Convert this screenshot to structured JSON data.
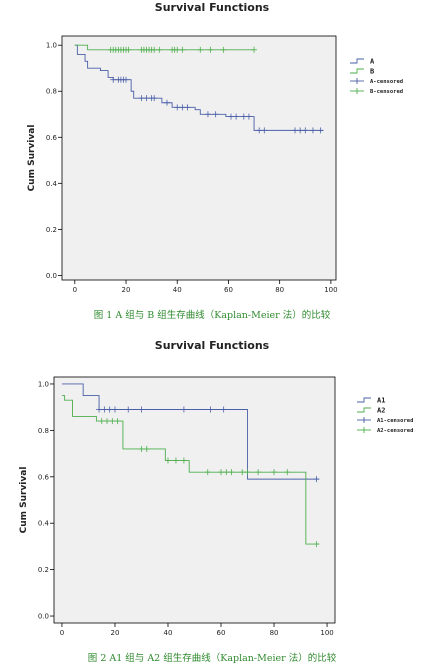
{
  "chart_data": [
    {
      "type": "line",
      "title": "Survival Functions",
      "caption": "图 1 A 组与 B 组生存曲线（Kaplan-Meier 法）的比较",
      "xlabel": "",
      "ylabel": "Cum Survival",
      "xlim": [
        -5,
        102
      ],
      "ylim": [
        -0.02,
        1.04
      ],
      "xticks": [
        "0",
        "20",
        "40",
        "60",
        "80",
        "100"
      ],
      "yticks": [
        "0.0",
        "0.2",
        "0.4",
        "0.6",
        "0.8",
        "1.0"
      ],
      "grid": false,
      "legend": [
        "A",
        "B",
        "A-censored",
        "B-censored"
      ],
      "legend_position": "right",
      "series": [
        {
          "name": "A",
          "color": "#4a5fa8",
          "steps": [
            [
              0,
              1.0
            ],
            [
              1,
              0.96
            ],
            [
              4,
              0.93
            ],
            [
              5,
              0.9
            ],
            [
              10,
              0.89
            ],
            [
              13,
              0.86
            ],
            [
              15,
              0.85
            ],
            [
              22,
              0.8
            ],
            [
              23,
              0.77
            ],
            [
              34,
              0.75
            ],
            [
              38,
              0.73
            ],
            [
              47,
              0.72
            ],
            [
              49,
              0.7
            ],
            [
              59,
              0.69
            ],
            [
              70,
              0.63
            ],
            [
              97,
              0.63
            ]
          ],
          "censored": [
            [
              15,
              0.85
            ],
            [
              17,
              0.85
            ],
            [
              18,
              0.85
            ],
            [
              19,
              0.85
            ],
            [
              20,
              0.85
            ],
            [
              26,
              0.77
            ],
            [
              28,
              0.77
            ],
            [
              30,
              0.77
            ],
            [
              31,
              0.77
            ],
            [
              36,
              0.75
            ],
            [
              40,
              0.73
            ],
            [
              42,
              0.73
            ],
            [
              44,
              0.73
            ],
            [
              52,
              0.7
            ],
            [
              55,
              0.7
            ],
            [
              61,
              0.69
            ],
            [
              63,
              0.69
            ],
            [
              66,
              0.69
            ],
            [
              68,
              0.69
            ],
            [
              72,
              0.63
            ],
            [
              74,
              0.63
            ],
            [
              86,
              0.63
            ],
            [
              88,
              0.63
            ],
            [
              90,
              0.63
            ],
            [
              93,
              0.63
            ],
            [
              96,
              0.63
            ]
          ]
        },
        {
          "name": "B",
          "color": "#4cae4c",
          "steps": [
            [
              0,
              1.0
            ],
            [
              5,
              0.98
            ],
            [
              70,
              0.98
            ]
          ],
          "censored": [
            [
              14,
              0.98
            ],
            [
              15,
              0.98
            ],
            [
              16,
              0.98
            ],
            [
              17,
              0.98
            ],
            [
              18,
              0.98
            ],
            [
              19,
              0.98
            ],
            [
              20,
              0.98
            ],
            [
              21,
              0.98
            ],
            [
              26,
              0.98
            ],
            [
              27,
              0.98
            ],
            [
              28,
              0.98
            ],
            [
              29,
              0.98
            ],
            [
              30,
              0.98
            ],
            [
              31,
              0.98
            ],
            [
              33,
              0.98
            ],
            [
              38,
              0.98
            ],
            [
              39,
              0.98
            ],
            [
              40,
              0.98
            ],
            [
              42,
              0.98
            ],
            [
              49,
              0.98
            ],
            [
              53,
              0.98
            ],
            [
              58,
              0.98
            ],
            [
              70,
              0.98
            ]
          ]
        }
      ]
    },
    {
      "type": "line",
      "title": "Survival Functions",
      "caption": "图 2 A1 组与 A2 组生存曲线（Kaplan-Meier 法）的比较",
      "xlabel": "",
      "ylabel": "Cum Survival",
      "xlim": [
        -3,
        103
      ],
      "ylim": [
        -0.03,
        1.03
      ],
      "xticks": [
        "0",
        "20",
        "40",
        "60",
        "80",
        "100"
      ],
      "yticks": [
        "0.0",
        "0.2",
        "0.4",
        "0.6",
        "0.8",
        "1.0"
      ],
      "grid": false,
      "legend": [
        "A1",
        "A2",
        "A1-censored",
        "A2-censored"
      ],
      "legend_position": "right",
      "series": [
        {
          "name": "A1",
          "color": "#4a5fa8",
          "steps": [
            [
              0,
              1.0
            ],
            [
              8,
              0.95
            ],
            [
              14,
              0.89
            ],
            [
              70,
              0.59
            ],
            [
              97,
              0.59
            ]
          ],
          "censored": [
            [
              14,
              0.89
            ],
            [
              16,
              0.89
            ],
            [
              18,
              0.89
            ],
            [
              20,
              0.89
            ],
            [
              25,
              0.89
            ],
            [
              30,
              0.89
            ],
            [
              46,
              0.89
            ],
            [
              56,
              0.89
            ],
            [
              61,
              0.89
            ],
            [
              96,
              0.59
            ]
          ]
        },
        {
          "name": "A2",
          "color": "#4cae4c",
          "steps": [
            [
              0,
              0.95
            ],
            [
              1,
              0.93
            ],
            [
              4,
              0.86
            ],
            [
              13,
              0.84
            ],
            [
              23,
              0.72
            ],
            [
              39,
              0.67
            ],
            [
              48,
              0.62
            ],
            [
              91,
              0.62
            ],
            [
              92,
              0.31
            ],
            [
              97,
              0.31
            ]
          ],
          "censored": [
            [
              15,
              0.84
            ],
            [
              17,
              0.84
            ],
            [
              19,
              0.84
            ],
            [
              21,
              0.84
            ],
            [
              30,
              0.72
            ],
            [
              32,
              0.72
            ],
            [
              40,
              0.67
            ],
            [
              43,
              0.67
            ],
            [
              46,
              0.67
            ],
            [
              55,
              0.62
            ],
            [
              60,
              0.62
            ],
            [
              62,
              0.62
            ],
            [
              64,
              0.62
            ],
            [
              68,
              0.62
            ],
            [
              70,
              0.62
            ],
            [
              74,
              0.62
            ],
            [
              80,
              0.62
            ],
            [
              85,
              0.62
            ],
            [
              96,
              0.31
            ]
          ]
        }
      ]
    }
  ]
}
